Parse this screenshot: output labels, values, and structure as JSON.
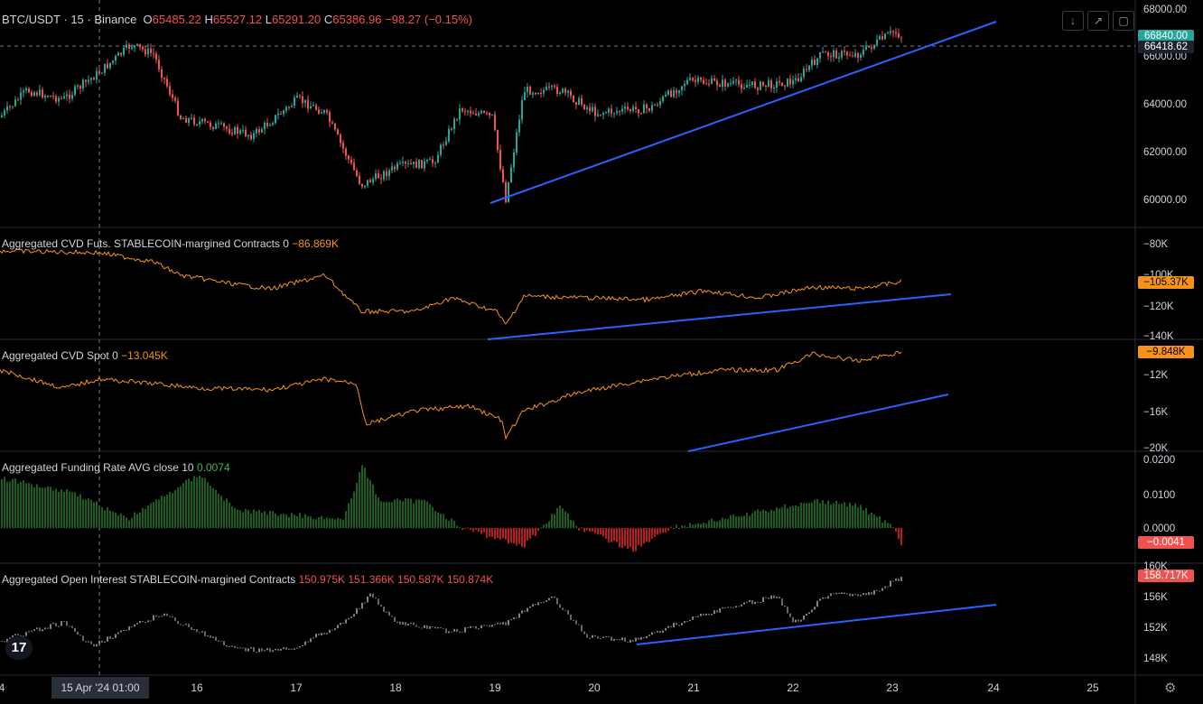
{
  "symbol": {
    "name": "BTC/USDT · 15 · Binance",
    "o_label": "O",
    "o": "65485.22",
    "h_label": "H",
    "h": "65527.12",
    "l_label": "L",
    "l": "65291.20",
    "c_label": "C",
    "c": "65386.96",
    "change": "−98.27 (−0.15%)"
  },
  "toolbar": {
    "icons": [
      "arrow-down-icon",
      "collapse-icon",
      "maximize-icon"
    ]
  },
  "colors": {
    "up": "#26a69a",
    "down": "#ef5350",
    "cvd": "#f7931a",
    "trend": "#2962ff",
    "funding_pos": "#1b5e20",
    "funding_neg": "#b71c1c",
    "oi": "#7a6a6a"
  },
  "price_pane": {
    "axis_ticks": [
      "68000.00",
      "66000.00",
      "64000.00",
      "62000.00",
      "60000.00"
    ],
    "last_price_tag": "66840.00",
    "crosshair_tag": "66418.62"
  },
  "cvd_futs_pane": {
    "label": "Aggregated CVD Futs. STABLECOIN-margined Contracts 0",
    "value": "−86.869K",
    "axis_ticks": [
      "−80K",
      "−100K",
      "−120K",
      "−140K"
    ],
    "tag": "−105.37K"
  },
  "cvd_spot_pane": {
    "label": "Aggregated CVD Spot 0",
    "value": "−13.045K",
    "axis_ticks": [
      "−12K",
      "−16K",
      "−20K"
    ],
    "tag": "−9.848K"
  },
  "funding_pane": {
    "label": "Aggregated Funding Rate AVG close 10",
    "value": "0.0074",
    "axis_ticks": [
      "0.0200",
      "0.0100",
      "0.0000"
    ],
    "tag": "−0.0041"
  },
  "oi_pane": {
    "label": "Aggregated Open Interest STABLECOIN-margined Contracts",
    "values": [
      "150.975K",
      "151.366K",
      "150.587K",
      "150.874K"
    ],
    "axis_ticks": [
      "160K",
      "156K",
      "152K",
      "148K"
    ],
    "tag": "158.717K"
  },
  "time_axis": {
    "labels": [
      "4",
      "16",
      "17",
      "18",
      "19",
      "20",
      "21",
      "22",
      "23",
      "24",
      "25"
    ],
    "highlight": "15 Apr '24  01:00"
  },
  "logo": "17"
}
